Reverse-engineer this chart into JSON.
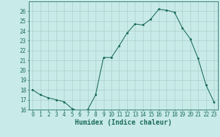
{
  "x": [
    0,
    1,
    2,
    3,
    4,
    5,
    6,
    7,
    8,
    9,
    10,
    11,
    12,
    13,
    14,
    15,
    16,
    17,
    18,
    19,
    20,
    21,
    22,
    23
  ],
  "y": [
    18.0,
    17.5,
    17.2,
    17.0,
    16.8,
    16.1,
    15.8,
    16.0,
    17.5,
    21.3,
    21.3,
    22.5,
    23.8,
    24.7,
    24.6,
    25.2,
    26.2,
    26.1,
    25.9,
    24.3,
    23.2,
    21.2,
    18.5,
    16.8
  ],
  "line_color": "#1a6b5a",
  "marker_color": "#1a6b5a",
  "bg_color": "#c8eae8",
  "grid_major_color": "#aacfcc",
  "grid_minor_color": "#c0deda",
  "axis_color": "#1a6b5a",
  "xlabel": "Humidex (Indice chaleur)",
  "ylim": [
    16,
    27
  ],
  "yticks": [
    16,
    17,
    18,
    19,
    20,
    21,
    22,
    23,
    24,
    25,
    26
  ],
  "xticks": [
    0,
    1,
    2,
    3,
    4,
    5,
    6,
    7,
    8,
    9,
    10,
    11,
    12,
    13,
    14,
    15,
    16,
    17,
    18,
    19,
    20,
    21,
    22,
    23
  ],
  "tick_label_fontsize": 5.5,
  "xlabel_fontsize": 7.0
}
